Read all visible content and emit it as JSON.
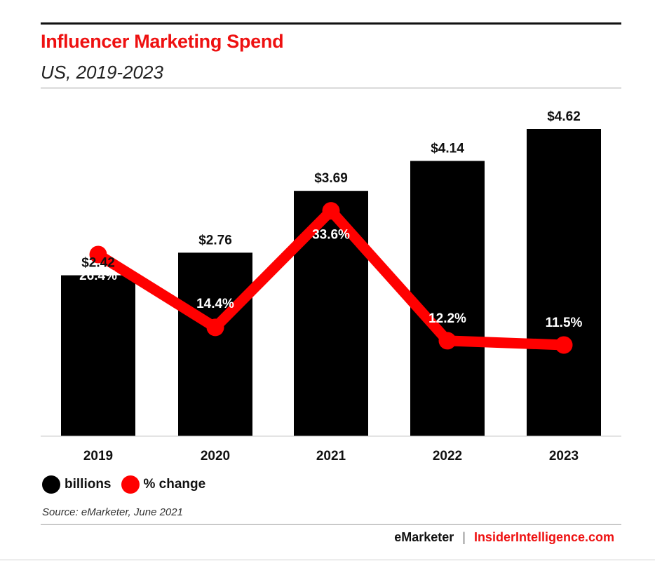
{
  "header": {
    "title": "Influencer Marketing Spend",
    "subtitle": "US, 2019-2023",
    "title_color": "#ee1111"
  },
  "legend": {
    "bars_label": "billions",
    "line_label": "% change",
    "bars_color": "#000000",
    "line_color": "#ff0000"
  },
  "source": "Source: eMarketer, June 2021",
  "footer": {
    "brand_left": "eMarketer",
    "separator": "|",
    "brand_right": "InsiderIntelligence.com",
    "brand_right_color": "#ee1111"
  },
  "chart_data": {
    "type": "bar",
    "categories": [
      "2019",
      "2020",
      "2021",
      "2022",
      "2023"
    ],
    "series": [
      {
        "name": "billions",
        "type": "bar",
        "values": [
          2.42,
          2.76,
          3.69,
          4.14,
          4.62
        ],
        "labels": [
          "$2.42",
          "$2.76",
          "$3.69",
          "$4.14",
          "$4.62"
        ],
        "color": "#000000"
      },
      {
        "name": "% change",
        "type": "line",
        "values": [
          26.4,
          14.4,
          33.6,
          12.2,
          11.5
        ],
        "labels": [
          "26.4%",
          "14.4%",
          "33.6%",
          "12.2%",
          "11.5%"
        ],
        "color": "#ff0000"
      }
    ],
    "title": "Influencer Marketing Spend",
    "subtitle": "US, 2019-2023",
    "bar_ylim": [
      0,
      4.62
    ],
    "line_ylim": [
      0,
      40
    ],
    "grid": false,
    "legend_position": "bottom-left"
  }
}
